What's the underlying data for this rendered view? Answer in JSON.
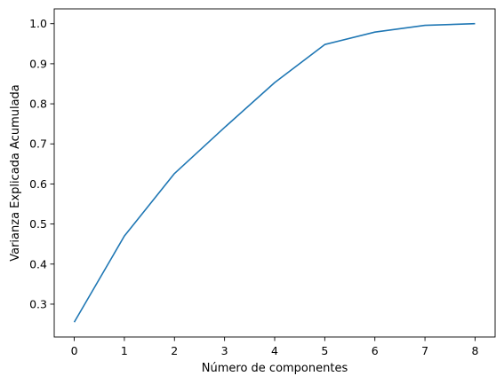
{
  "chart_data": {
    "type": "line",
    "title": "",
    "xlabel": "Número de componentes",
    "ylabel": "Varianza Explicada Acumulada",
    "x": [
      0,
      1,
      2,
      3,
      4,
      5,
      6,
      7,
      8
    ],
    "series": [
      {
        "values": [
          0.255,
          0.47,
          0.626,
          0.741,
          0.853,
          0.948,
          0.979,
          0.996,
          1.0
        ],
        "color": "#1f77b4"
      }
    ],
    "xlim": [
      -0.4,
      8.4
    ],
    "ylim": [
      0.218,
      1.037
    ],
    "x_ticks": [
      "0",
      "1",
      "2",
      "3",
      "4",
      "5",
      "6",
      "7",
      "8"
    ],
    "y_ticks": [
      "0.3",
      "0.4",
      "0.5",
      "0.6",
      "0.7",
      "0.8",
      "0.9",
      "1.0"
    ],
    "grid": false,
    "legend": "none"
  }
}
